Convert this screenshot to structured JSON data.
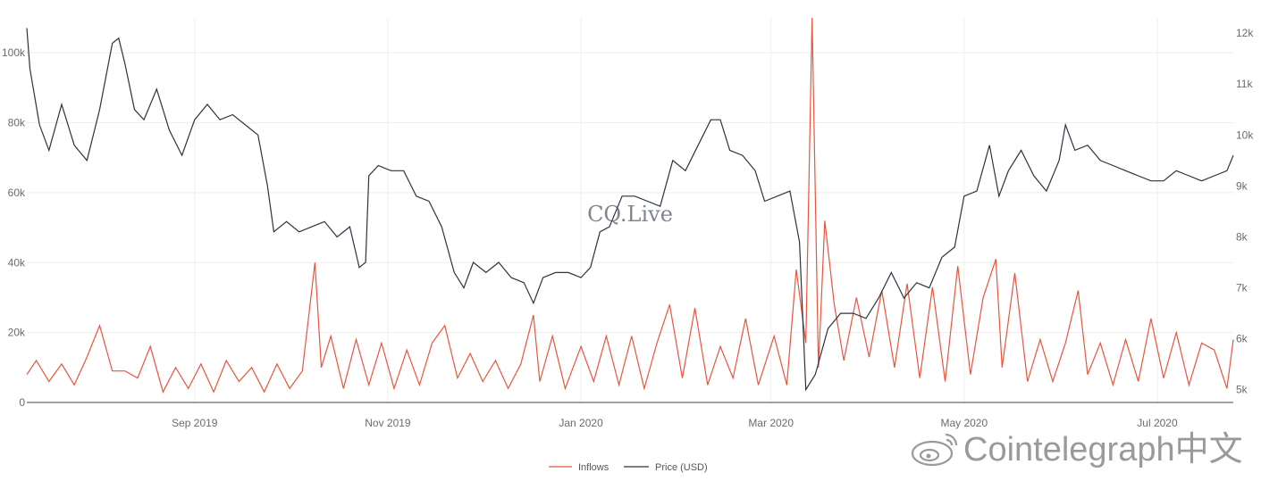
{
  "chart_data": {
    "type": "line",
    "title": "",
    "watermark": "CQ.Live",
    "source_watermark": "Cointelegraph中文",
    "x_tick_labels": [
      "Sep 2019",
      "Nov 2019",
      "Jan 2020",
      "Mar 2020",
      "May 2020",
      "Jul 2020"
    ],
    "x_range": [
      "2019-07-10",
      "2020-07-25"
    ],
    "y_left": {
      "label": "",
      "range": [
        0,
        110000
      ],
      "tick_labels": [
        "0",
        "20k",
        "40k",
        "60k",
        "80k",
        "100k"
      ],
      "tick_values": [
        0,
        20000,
        40000,
        60000,
        80000,
        100000
      ]
    },
    "y_right": {
      "label": "",
      "range": [
        4750,
        12300
      ],
      "tick_labels": [
        "5k",
        "6k",
        "7k",
        "8k",
        "9k",
        "10k",
        "11k",
        "12k"
      ],
      "tick_values": [
        5000,
        6000,
        7000,
        8000,
        9000,
        10000,
        11000,
        12000
      ]
    },
    "legend_position": "bottom-center",
    "grid": true,
    "series": [
      {
        "name": "Inflows",
        "axis": "left",
        "color": "#e8553e",
        "points": [
          [
            "2019-07-10",
            8000
          ],
          [
            "2019-07-13",
            12000
          ],
          [
            "2019-07-17",
            6000
          ],
          [
            "2019-07-21",
            11000
          ],
          [
            "2019-07-25",
            5000
          ],
          [
            "2019-07-29",
            13000
          ],
          [
            "2019-08-02",
            22000
          ],
          [
            "2019-08-06",
            9000
          ],
          [
            "2019-08-10",
            9000
          ],
          [
            "2019-08-14",
            7000
          ],
          [
            "2019-08-18",
            16000
          ],
          [
            "2019-08-22",
            3000
          ],
          [
            "2019-08-26",
            10000
          ],
          [
            "2019-08-30",
            4000
          ],
          [
            "2019-09-03",
            11000
          ],
          [
            "2019-09-07",
            3000
          ],
          [
            "2019-09-11",
            12000
          ],
          [
            "2019-09-15",
            6000
          ],
          [
            "2019-09-19",
            10000
          ],
          [
            "2019-09-23",
            3000
          ],
          [
            "2019-09-27",
            11000
          ],
          [
            "2019-10-01",
            4000
          ],
          [
            "2019-10-05",
            9000
          ],
          [
            "2019-10-09",
            40000
          ],
          [
            "2019-10-11",
            10000
          ],
          [
            "2019-10-14",
            19000
          ],
          [
            "2019-10-18",
            4000
          ],
          [
            "2019-10-22",
            18000
          ],
          [
            "2019-10-26",
            5000
          ],
          [
            "2019-10-30",
            17000
          ],
          [
            "2019-11-03",
            4000
          ],
          [
            "2019-11-07",
            15000
          ],
          [
            "2019-11-11",
            5000
          ],
          [
            "2019-11-15",
            17000
          ],
          [
            "2019-11-19",
            22000
          ],
          [
            "2019-11-23",
            7000
          ],
          [
            "2019-11-27",
            14000
          ],
          [
            "2019-12-01",
            6000
          ],
          [
            "2019-12-05",
            12000
          ],
          [
            "2019-12-09",
            4000
          ],
          [
            "2019-12-13",
            11000
          ],
          [
            "2019-12-17",
            25000
          ],
          [
            "2019-12-19",
            6000
          ],
          [
            "2019-12-23",
            19000
          ],
          [
            "2019-12-27",
            4000
          ],
          [
            "2020-01-01",
            16000
          ],
          [
            "2020-01-05",
            6000
          ],
          [
            "2020-01-09",
            19000
          ],
          [
            "2020-01-13",
            5000
          ],
          [
            "2020-01-17",
            19000
          ],
          [
            "2020-01-21",
            4000
          ],
          [
            "2020-01-25",
            17000
          ],
          [
            "2020-01-29",
            28000
          ],
          [
            "2020-02-02",
            7000
          ],
          [
            "2020-02-06",
            27000
          ],
          [
            "2020-02-10",
            5000
          ],
          [
            "2020-02-14",
            16000
          ],
          [
            "2020-02-18",
            7000
          ],
          [
            "2020-02-22",
            24000
          ],
          [
            "2020-02-26",
            5000
          ],
          [
            "2020-03-02",
            19000
          ],
          [
            "2020-03-06",
            5000
          ],
          [
            "2020-03-09",
            38000
          ],
          [
            "2020-03-12",
            17000
          ],
          [
            "2020-03-14",
            110000
          ],
          [
            "2020-03-16",
            10000
          ],
          [
            "2020-03-18",
            52000
          ],
          [
            "2020-03-21",
            28000
          ],
          [
            "2020-03-24",
            12000
          ],
          [
            "2020-03-28",
            30000
          ],
          [
            "2020-04-01",
            13000
          ],
          [
            "2020-04-05",
            32000
          ],
          [
            "2020-04-09",
            10000
          ],
          [
            "2020-04-13",
            34000
          ],
          [
            "2020-04-17",
            7000
          ],
          [
            "2020-04-21",
            33000
          ],
          [
            "2020-04-25",
            6000
          ],
          [
            "2020-04-29",
            39000
          ],
          [
            "2020-05-03",
            8000
          ],
          [
            "2020-05-07",
            30000
          ],
          [
            "2020-05-11",
            41000
          ],
          [
            "2020-05-13",
            10000
          ],
          [
            "2020-05-17",
            37000
          ],
          [
            "2020-05-21",
            6000
          ],
          [
            "2020-05-25",
            18000
          ],
          [
            "2020-05-29",
            6000
          ],
          [
            "2020-06-02",
            17000
          ],
          [
            "2020-06-06",
            32000
          ],
          [
            "2020-06-09",
            8000
          ],
          [
            "2020-06-13",
            17000
          ],
          [
            "2020-06-17",
            5000
          ],
          [
            "2020-06-21",
            18000
          ],
          [
            "2020-06-25",
            6000
          ],
          [
            "2020-06-29",
            24000
          ],
          [
            "2020-07-03",
            7000
          ],
          [
            "2020-07-07",
            20000
          ],
          [
            "2020-07-11",
            5000
          ],
          [
            "2020-07-15",
            17000
          ],
          [
            "2020-07-19",
            15000
          ],
          [
            "2020-07-23",
            4000
          ],
          [
            "2020-07-25",
            18000
          ]
        ]
      },
      {
        "name": "Price (USD)",
        "axis": "right",
        "color": "#2b3340",
        "points": [
          [
            "2019-07-10",
            12100
          ],
          [
            "2019-07-11",
            11300
          ],
          [
            "2019-07-14",
            10200
          ],
          [
            "2019-07-17",
            9700
          ],
          [
            "2019-07-21",
            10600
          ],
          [
            "2019-07-25",
            9800
          ],
          [
            "2019-07-29",
            9500
          ],
          [
            "2019-08-02",
            10500
          ],
          [
            "2019-08-06",
            11800
          ],
          [
            "2019-08-08",
            11900
          ],
          [
            "2019-08-10",
            11400
          ],
          [
            "2019-08-13",
            10500
          ],
          [
            "2019-08-16",
            10300
          ],
          [
            "2019-08-20",
            10900
          ],
          [
            "2019-08-24",
            10100
          ],
          [
            "2019-08-28",
            9600
          ],
          [
            "2019-09-01",
            10300
          ],
          [
            "2019-09-05",
            10600
          ],
          [
            "2019-09-09",
            10300
          ],
          [
            "2019-09-13",
            10400
          ],
          [
            "2019-09-17",
            10200
          ],
          [
            "2019-09-21",
            10000
          ],
          [
            "2019-09-24",
            9000
          ],
          [
            "2019-09-26",
            8100
          ],
          [
            "2019-09-30",
            8300
          ],
          [
            "2019-10-04",
            8100
          ],
          [
            "2019-10-08",
            8200
          ],
          [
            "2019-10-12",
            8300
          ],
          [
            "2019-10-16",
            8000
          ],
          [
            "2019-10-20",
            8200
          ],
          [
            "2019-10-23",
            7400
          ],
          [
            "2019-10-25",
            7500
          ],
          [
            "2019-10-26",
            9200
          ],
          [
            "2019-10-29",
            9400
          ],
          [
            "2019-11-02",
            9300
          ],
          [
            "2019-11-06",
            9300
          ],
          [
            "2019-11-10",
            8800
          ],
          [
            "2019-11-14",
            8700
          ],
          [
            "2019-11-18",
            8200
          ],
          [
            "2019-11-22",
            7300
          ],
          [
            "2019-11-25",
            7000
          ],
          [
            "2019-11-28",
            7500
          ],
          [
            "2019-12-02",
            7300
          ],
          [
            "2019-12-06",
            7500
          ],
          [
            "2019-12-10",
            7200
          ],
          [
            "2019-12-14",
            7100
          ],
          [
            "2019-12-17",
            6700
          ],
          [
            "2019-12-20",
            7200
          ],
          [
            "2019-12-24",
            7300
          ],
          [
            "2019-12-28",
            7300
          ],
          [
            "2020-01-01",
            7200
          ],
          [
            "2020-01-04",
            7400
          ],
          [
            "2020-01-07",
            8100
          ],
          [
            "2020-01-10",
            8200
          ],
          [
            "2020-01-14",
            8800
          ],
          [
            "2020-01-18",
            8800
          ],
          [
            "2020-01-22",
            8700
          ],
          [
            "2020-01-26",
            8600
          ],
          [
            "2020-01-30",
            9500
          ],
          [
            "2020-02-03",
            9300
          ],
          [
            "2020-02-07",
            9800
          ],
          [
            "2020-02-11",
            10300
          ],
          [
            "2020-02-14",
            10300
          ],
          [
            "2020-02-17",
            9700
          ],
          [
            "2020-02-21",
            9600
          ],
          [
            "2020-02-25",
            9300
          ],
          [
            "2020-02-28",
            8700
          ],
          [
            "2020-03-03",
            8800
          ],
          [
            "2020-03-07",
            8900
          ],
          [
            "2020-03-10",
            7900
          ],
          [
            "2020-03-12",
            5000
          ],
          [
            "2020-03-15",
            5300
          ],
          [
            "2020-03-19",
            6200
          ],
          [
            "2020-03-23",
            6500
          ],
          [
            "2020-03-27",
            6500
          ],
          [
            "2020-03-31",
            6400
          ],
          [
            "2020-04-04",
            6800
          ],
          [
            "2020-04-08",
            7300
          ],
          [
            "2020-04-12",
            6800
          ],
          [
            "2020-04-16",
            7100
          ],
          [
            "2020-04-20",
            7000
          ],
          [
            "2020-04-24",
            7600
          ],
          [
            "2020-04-28",
            7800
          ],
          [
            "2020-05-01",
            8800
          ],
          [
            "2020-05-05",
            8900
          ],
          [
            "2020-05-09",
            9800
          ],
          [
            "2020-05-12",
            8800
          ],
          [
            "2020-05-15",
            9300
          ],
          [
            "2020-05-19",
            9700
          ],
          [
            "2020-05-23",
            9200
          ],
          [
            "2020-05-27",
            8900
          ],
          [
            "2020-05-31",
            9500
          ],
          [
            "2020-06-02",
            10200
          ],
          [
            "2020-06-05",
            9700
          ],
          [
            "2020-06-09",
            9800
          ],
          [
            "2020-06-13",
            9500
          ],
          [
            "2020-06-17",
            9400
          ],
          [
            "2020-06-21",
            9300
          ],
          [
            "2020-06-25",
            9200
          ],
          [
            "2020-06-29",
            9100
          ],
          [
            "2020-07-03",
            9100
          ],
          [
            "2020-07-07",
            9300
          ],
          [
            "2020-07-11",
            9200
          ],
          [
            "2020-07-15",
            9100
          ],
          [
            "2020-07-19",
            9200
          ],
          [
            "2020-07-23",
            9300
          ],
          [
            "2020-07-25",
            9600
          ]
        ]
      }
    ]
  }
}
